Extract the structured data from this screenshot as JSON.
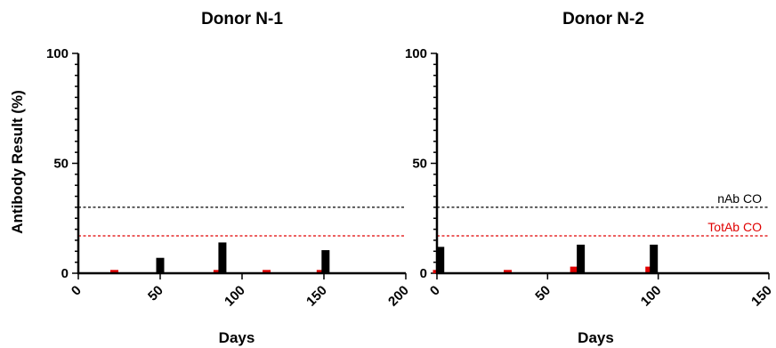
{
  "shared": {
    "ylabel": "Antibody Result (%)",
    "xlabel": "Days"
  },
  "chart_data": [
    {
      "type": "bar",
      "title": "Donor N-1",
      "xlabel": "Days",
      "ylabel": "Antibody Result (%)",
      "xlim": [
        0,
        200
      ],
      "ylim": [
        0,
        100
      ],
      "x_ticks": [
        "0",
        "50",
        "100",
        "150",
        "200"
      ],
      "y_ticks": [
        "0",
        "50",
        "100"
      ],
      "series": [
        {
          "name": "TotAb",
          "color": "#e00000",
          "x": [
            22,
            85,
            115,
            148
          ],
          "values": [
            1.5,
            1.5,
            1.5,
            1.5
          ]
        },
        {
          "name": "nAb",
          "color": "#000000",
          "x": [
            50,
            88,
            151
          ],
          "values": [
            7,
            14,
            10.5
          ]
        }
      ],
      "reference_lines": [
        {
          "name": "nAb CO",
          "value": 30,
          "color": "#000000",
          "label": ""
        },
        {
          "name": "TotAb CO",
          "value": 17,
          "color": "#e00000",
          "label": ""
        }
      ]
    },
    {
      "type": "bar",
      "title": "Donor N-2",
      "xlabel": "Days",
      "xlim": [
        0,
        150
      ],
      "ylim": [
        0,
        100
      ],
      "x_ticks": [
        "0",
        "50",
        "100",
        "150"
      ],
      "y_ticks": [
        "0",
        "50",
        "100"
      ],
      "series": [
        {
          "name": "TotAb",
          "color": "#e00000",
          "x": [
            0,
            32,
            62,
            96
          ],
          "values": [
            1.5,
            1.5,
            3,
            3
          ]
        },
        {
          "name": "nAb",
          "color": "#000000",
          "x": [
            1.5,
            65,
            98
          ],
          "values": [
            12,
            13,
            13
          ]
        }
      ],
      "reference_lines": [
        {
          "name": "nAb CO",
          "value": 30,
          "color": "#000000",
          "label": "nAb CO"
        },
        {
          "name": "TotAb CO",
          "value": 17,
          "color": "#e00000",
          "label": "TotAb CO"
        }
      ]
    }
  ]
}
